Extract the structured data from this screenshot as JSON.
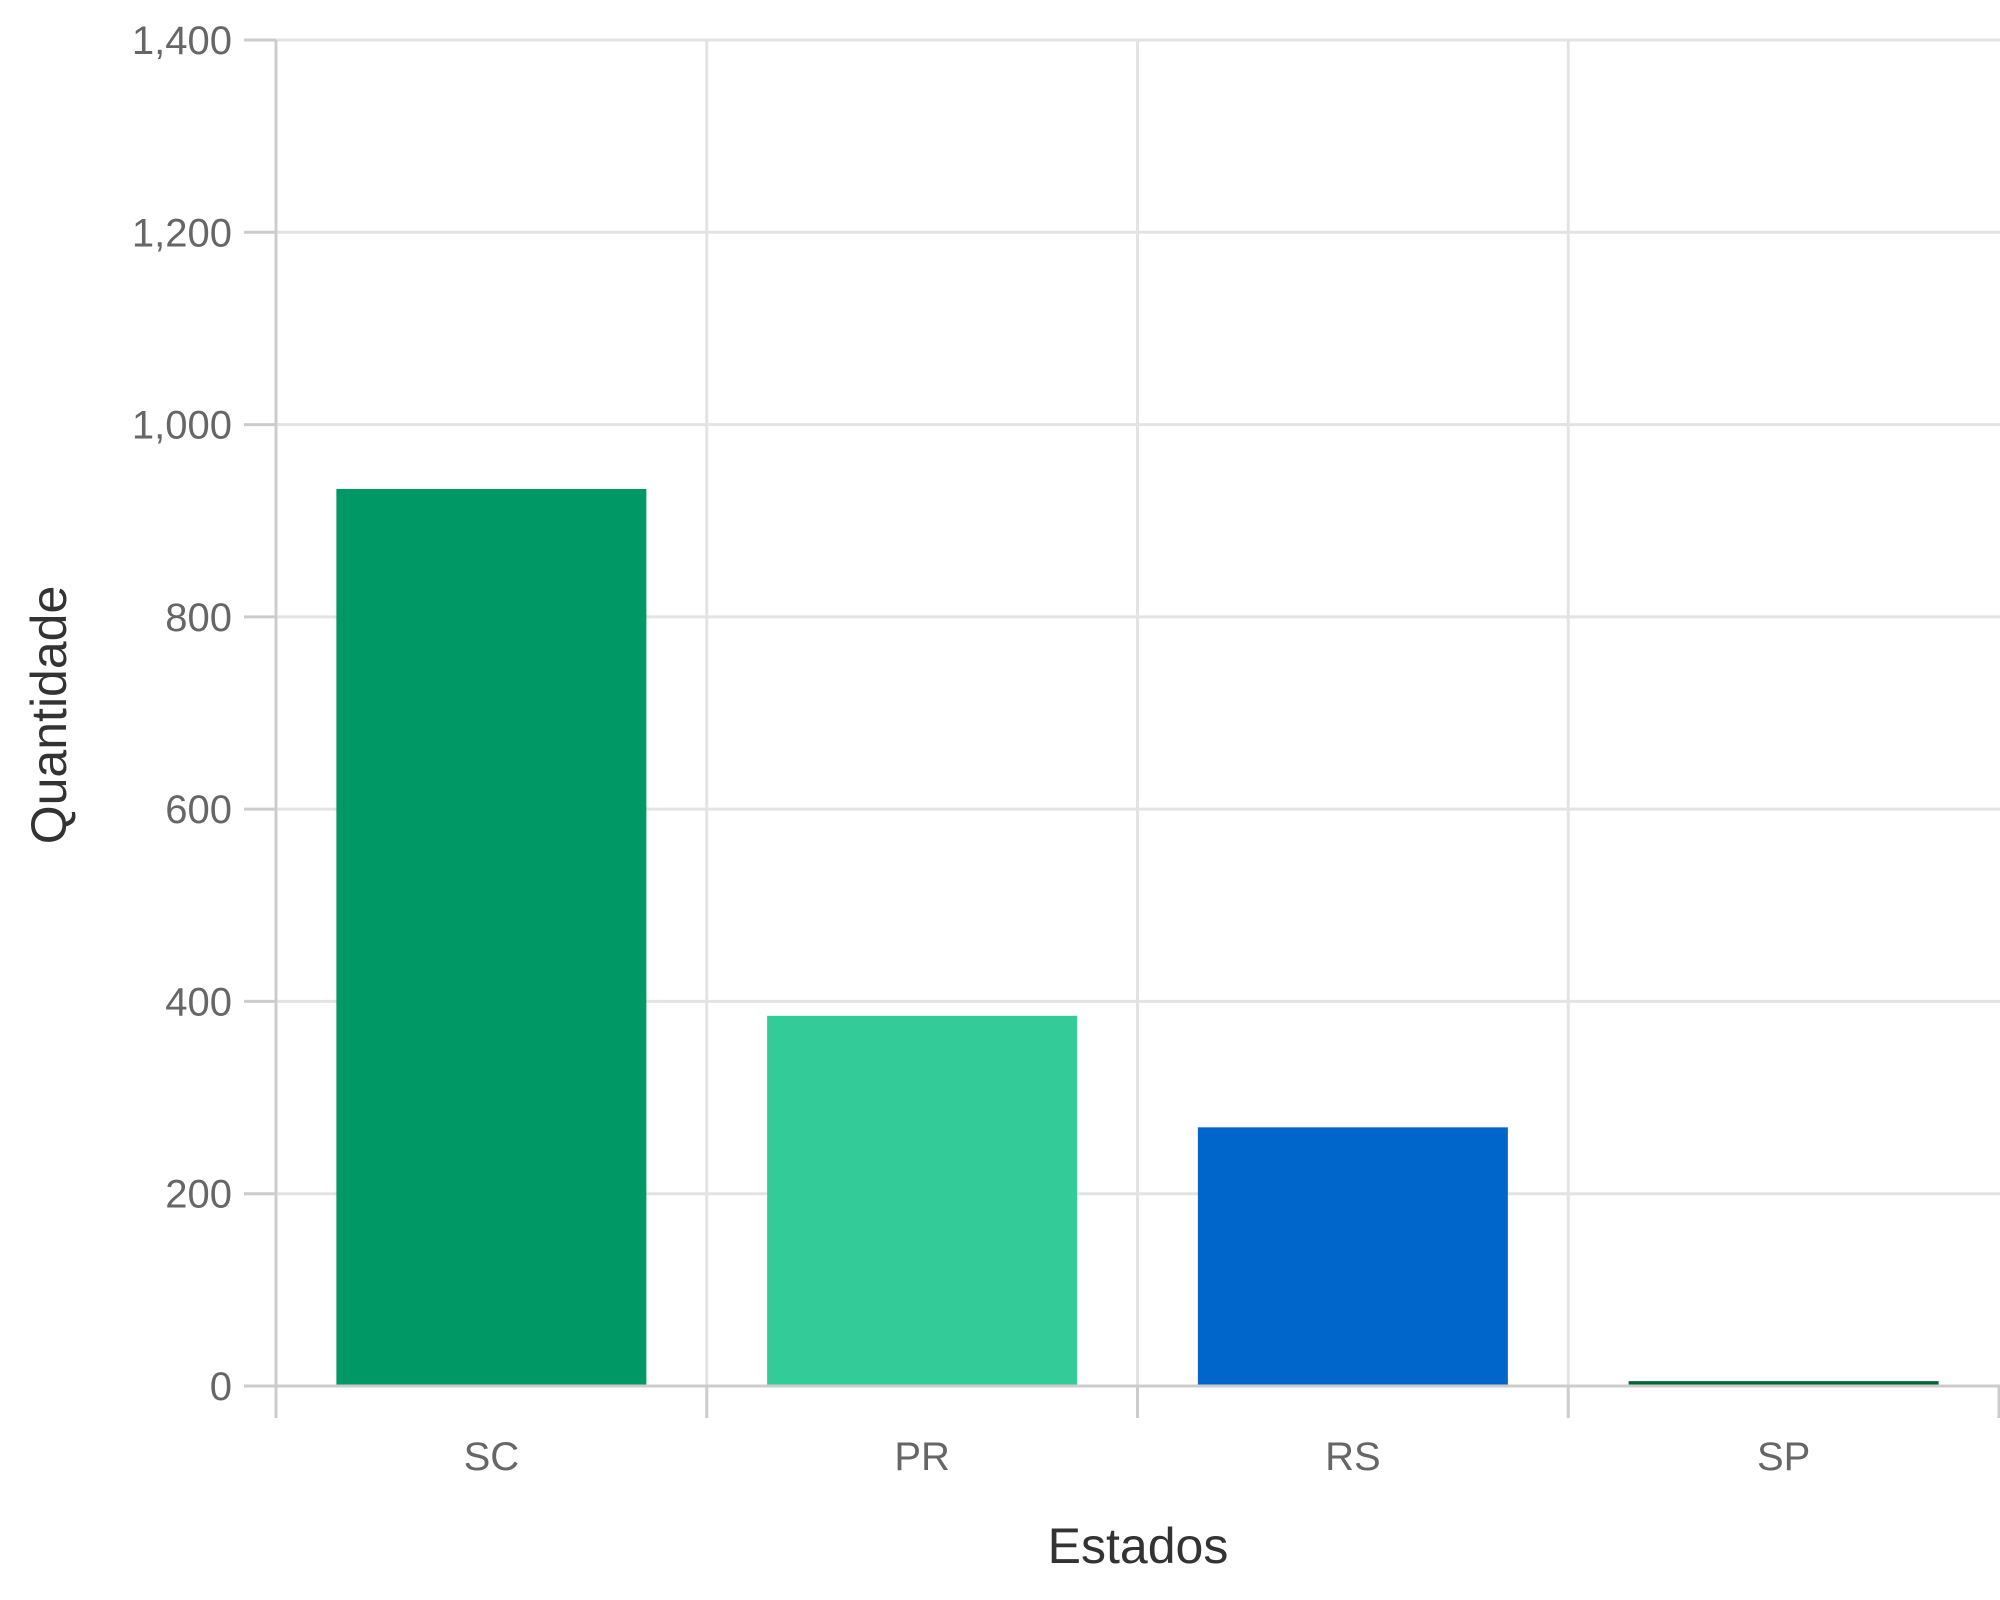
{
  "chart_data": {
    "type": "bar",
    "categories": [
      "SC",
      "PR",
      "RS",
      "SP"
    ],
    "values": [
      932,
      384,
      268,
      4
    ],
    "colors": [
      "#009966",
      "#33cc99",
      "#0066cc",
      "#006633"
    ],
    "xlabel": "Estados",
    "ylabel": "Quantidade",
    "ylim": [
      0,
      1400
    ],
    "yticks": [
      0,
      200,
      400,
      600,
      800,
      1000,
      1200,
      1400
    ],
    "ytick_labels": [
      "0",
      "200",
      "400",
      "600",
      "800",
      "1,000",
      "1,200",
      "1,400"
    ],
    "grid": true,
    "legend": "none"
  }
}
